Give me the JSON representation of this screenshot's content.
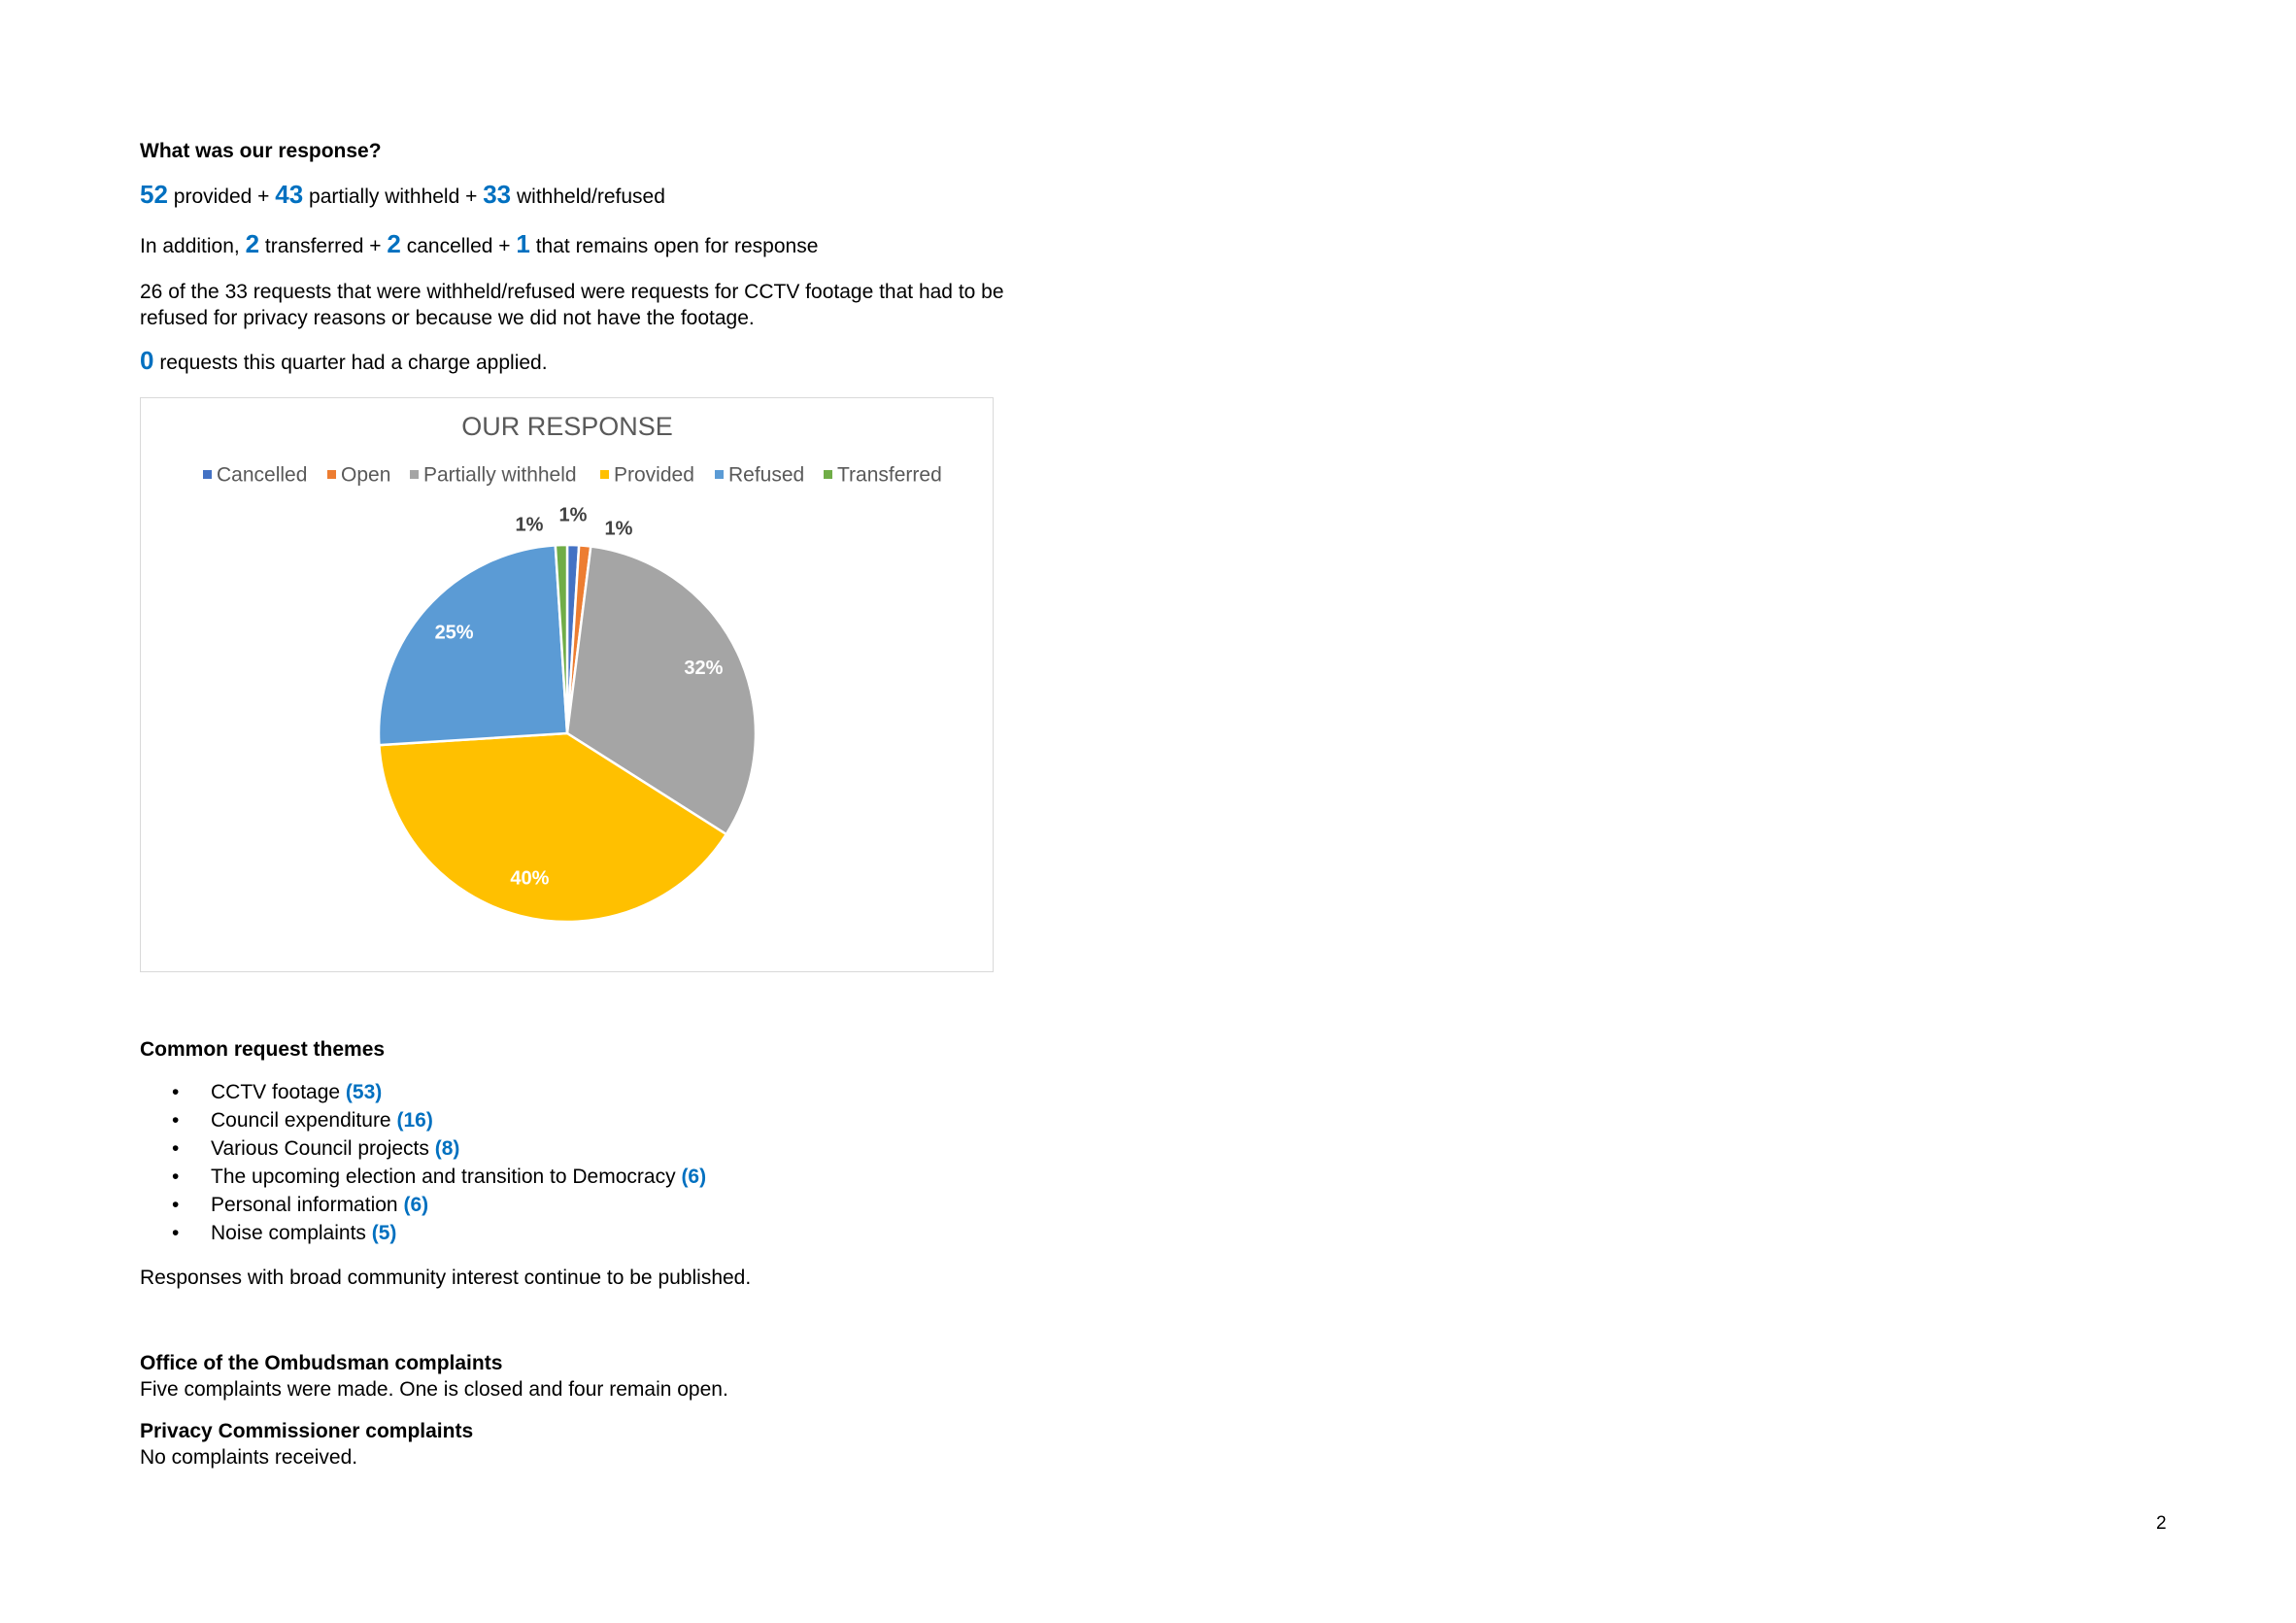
{
  "response": {
    "heading": "What was our response?",
    "summary": [
      {
        "number": 52,
        "text": "provided +"
      },
      {
        "number": 43,
        "text": "partially withheld +"
      },
      {
        "number": 33,
        "text": "withheld/refused"
      }
    ],
    "additional": {
      "lead": "In addition,",
      "items": [
        {
          "number": 2,
          "text": "transferred +"
        },
        {
          "number": 2,
          "text": "cancelled +"
        },
        {
          "number": 1,
          "text": "that remains open for response"
        }
      ]
    },
    "note": "26 of the 33 requests that were withheld/refused were requests for CCTV footage that had to be refused for privacy reasons or because we did not have the footage.",
    "charge": {
      "number": 0,
      "text": "requests this quarter had a charge applied."
    }
  },
  "chart_data": {
    "type": "pie",
    "title": "OUR RESPONSE",
    "categories": [
      "Cancelled",
      "Open",
      "Partially withheld",
      "Provided",
      "Refused",
      "Transferred"
    ],
    "values": [
      1,
      1,
      32,
      40,
      25,
      1
    ],
    "value_labels": [
      "1%",
      "1%",
      "32%",
      "40%",
      "25%",
      "1%"
    ],
    "colors": [
      "#4472c4",
      "#ed7d31",
      "#a5a5a5",
      "#ffc000",
      "#5b9bd5",
      "#70ad47"
    ],
    "legend": "top"
  },
  "themes": {
    "heading": "Common request themes",
    "items": [
      {
        "name": "CCTV footage",
        "count": "(53)"
      },
      {
        "name": "Council expenditure",
        "count": "(16)"
      },
      {
        "name": "Various Council projects",
        "count": "(8)"
      },
      {
        "name": "The upcoming election and transition to Democracy",
        "count": "(6)"
      },
      {
        "name": "Personal information",
        "count": "(6)"
      },
      {
        "name": "Noise complaints",
        "count": "(5)"
      }
    ],
    "footer": "Responses with broad community interest continue to be published."
  },
  "ombudsman": {
    "heading": "Office of the Ombudsman complaints",
    "text": "Five complaints were made. One is closed and four remain open."
  },
  "privacy": {
    "heading": "Privacy Commissioner complaints",
    "text": "No complaints received."
  },
  "page_number": 2
}
